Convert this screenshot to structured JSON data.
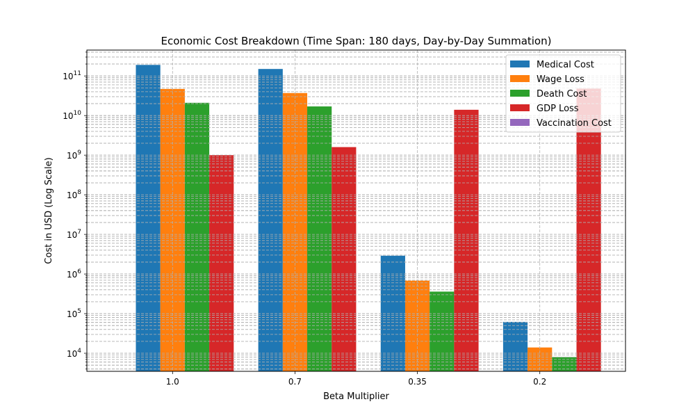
{
  "chart_data": {
    "type": "bar",
    "title": "Economic Cost Breakdown (Time Span: 180 days, Day-by-Day Summation)",
    "xlabel": "Beta Multiplier",
    "ylabel": "Cost in USD (Log Scale)",
    "yscale": "log",
    "ylim": [
      3500,
      450000000000
    ],
    "grid": true,
    "legend_position": "top-right",
    "categories": [
      "1.0",
      "0.7",
      "0.35",
      "0.2"
    ],
    "series": [
      {
        "name": "Medical Cost",
        "color": "#1f77b4",
        "values": [
          190000000000,
          150000000000,
          2900000,
          62000
        ]
      },
      {
        "name": "Wage Loss",
        "color": "#ff7f0e",
        "values": [
          47000000000,
          37000000000,
          680000,
          14000
        ]
      },
      {
        "name": "Death Cost",
        "color": "#2ca02c",
        "values": [
          21000000000,
          17000000000,
          360000,
          8000
        ]
      },
      {
        "name": "GDP Loss",
        "color": "#d62728",
        "values": [
          1000000000,
          1600000000,
          14000000000,
          48000000000
        ]
      },
      {
        "name": "Vaccination Cost",
        "color": "#9467bd",
        "values": [
          0,
          0,
          0,
          0
        ]
      }
    ],
    "y_ticks": [
      {
        "value": 10000,
        "base": "10",
        "exp": "4"
      },
      {
        "value": 100000,
        "base": "10",
        "exp": "5"
      },
      {
        "value": 1000000,
        "base": "10",
        "exp": "6"
      },
      {
        "value": 10000000,
        "base": "10",
        "exp": "7"
      },
      {
        "value": 100000000,
        "base": "10",
        "exp": "8"
      },
      {
        "value": 1000000000,
        "base": "10",
        "exp": "9"
      },
      {
        "value": 10000000000,
        "base": "10",
        "exp": "10"
      },
      {
        "value": 100000000000,
        "base": "10",
        "exp": "11"
      }
    ]
  }
}
